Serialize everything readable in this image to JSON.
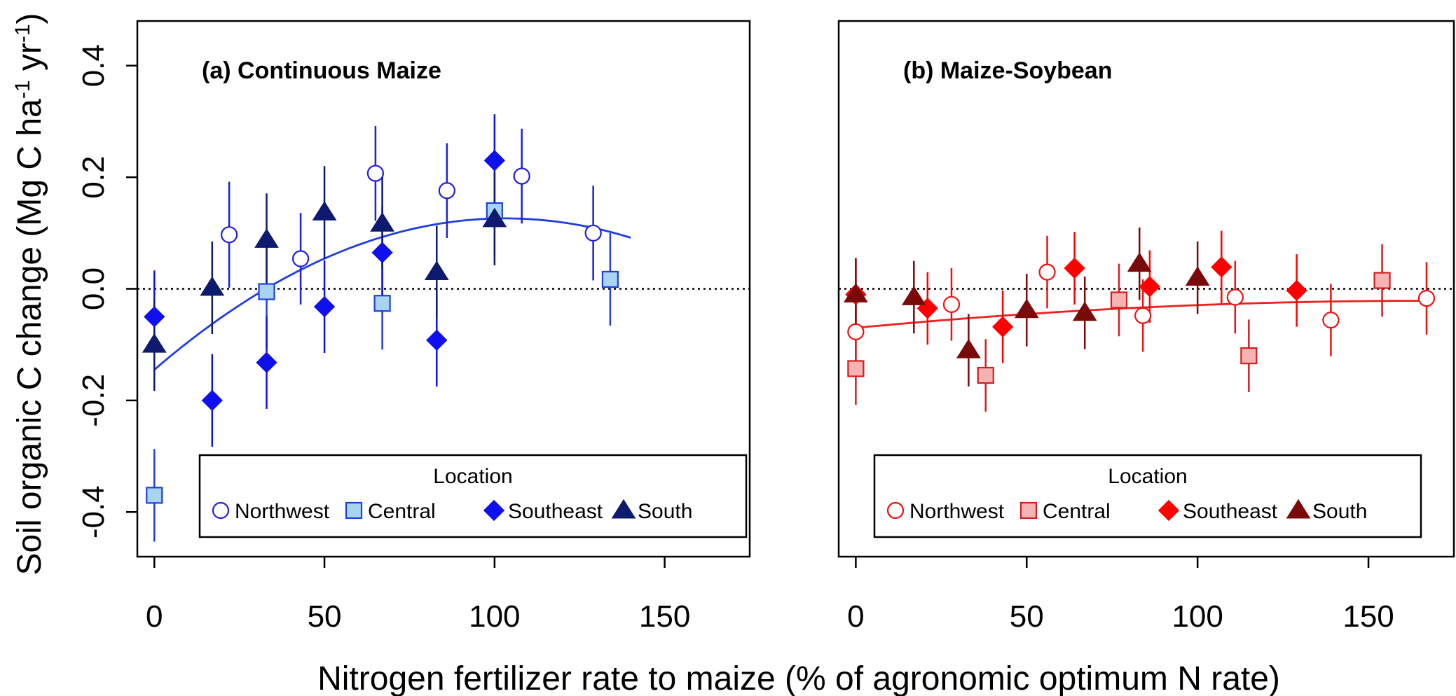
{
  "ylabel": "Soil organic C change (Mg C ha⁻¹ yr⁻¹)",
  "xlabel": "Nitrogen fertilizer rate to maize (% of agronomic optimum N rate)",
  "chart_data": [
    {
      "type": "scatter",
      "title": "(a) Continuous Maize",
      "xlim": [
        -5,
        175
      ],
      "ylim": [
        -0.48,
        0.48
      ],
      "x_ticks": [
        0,
        50,
        100,
        150
      ],
      "y_ticks": [
        -0.4,
        -0.2,
        0.0,
        0.2,
        0.4
      ],
      "y_tick_labels": [
        "-0.4",
        "-0.2",
        "0.0",
        "0.2",
        "0.4"
      ],
      "show_y_ticks": true,
      "reference_line_y": 0.0,
      "legend": {
        "title": "Location",
        "placement": "bottom"
      },
      "fit_curve": {
        "color": "#1f3fe0",
        "x_range": [
          0,
          140
        ],
        "coefficients": [
          -0.145,
          0.00526,
          -2.55e-05
        ]
      },
      "series": [
        {
          "name": "Northwest",
          "marker": "circle-open",
          "color": "#1f1fe0",
          "fill": "#ffffff",
          "points": [
            {
              "x": 22,
              "y": 0.097,
              "err": 0.095
            },
            {
              "x": 43,
              "y": 0.054,
              "err": 0.082
            },
            {
              "x": 65,
              "y": 0.207,
              "err": 0.085
            },
            {
              "x": 86,
              "y": 0.176,
              "err": 0.085
            },
            {
              "x": 108,
              "y": 0.202,
              "err": 0.085
            },
            {
              "x": 129,
              "y": 0.1,
              "err": 0.085
            }
          ]
        },
        {
          "name": "Central",
          "marker": "square",
          "color": "#1f3fe0",
          "fill": "#a8d4f0",
          "points": [
            {
              "x": 0,
              "y": -0.37,
              "err": 0.083
            },
            {
              "x": 33,
              "y": -0.005,
              "err": 0.1
            },
            {
              "x": 67,
              "y": -0.026,
              "err": 0.083
            },
            {
              "x": 100,
              "y": 0.14,
              "err": 0.083
            },
            {
              "x": 134,
              "y": 0.017,
              "err": 0.083
            }
          ]
        },
        {
          "name": "Southeast",
          "marker": "diamond",
          "color": "#1010ee",
          "fill": "#1010ee",
          "points": [
            {
              "x": 0,
              "y": -0.05,
              "err": 0.083
            },
            {
              "x": 17,
              "y": -0.2,
              "err": 0.083
            },
            {
              "x": 33,
              "y": -0.132,
              "err": 0.083
            },
            {
              "x": 50,
              "y": -0.032,
              "err": 0.083
            },
            {
              "x": 67,
              "y": 0.065,
              "err": 0.083
            },
            {
              "x": 83,
              "y": -0.092,
              "err": 0.083
            },
            {
              "x": 100,
              "y": 0.23,
              "err": 0.083
            }
          ]
        },
        {
          "name": "South",
          "marker": "triangle",
          "color": "#0d1a6e",
          "fill": "#0d1a6e",
          "points": [
            {
              "x": 0,
              "y": -0.1,
              "err": 0.083
            },
            {
              "x": 17,
              "y": 0.002,
              "err": 0.083
            },
            {
              "x": 33,
              "y": 0.088,
              "err": 0.083
            },
            {
              "x": 50,
              "y": 0.137,
              "err": 0.083
            },
            {
              "x": 67,
              "y": 0.117,
              "err": 0.083
            },
            {
              "x": 83,
              "y": 0.03,
              "err": 0.083
            },
            {
              "x": 100,
              "y": 0.125,
              "err": 0.083
            }
          ]
        }
      ]
    },
    {
      "type": "scatter",
      "title": "(b) Maize-Soybean",
      "xlim": [
        -5,
        175
      ],
      "ylim": [
        -0.48,
        0.48
      ],
      "x_ticks": [
        0,
        50,
        100,
        150
      ],
      "y_ticks": [],
      "y_tick_labels": [],
      "show_y_ticks": false,
      "reference_line_y": 0.0,
      "legend": {
        "title": "Location",
        "placement": "bottom"
      },
      "fit_curve": {
        "color": "#ee2020",
        "x_range": [
          0,
          167
        ],
        "coefficients": [
          -0.07,
          0.000583,
          -1.75e-06
        ]
      },
      "series": [
        {
          "name": "Northwest",
          "marker": "circle-open",
          "color": "#ee1111",
          "fill": "#ffffff",
          "points": [
            {
              "x": 0,
              "y": -0.077,
              "err": 0.065
            },
            {
              "x": 28,
              "y": -0.028,
              "err": 0.065
            },
            {
              "x": 56,
              "y": 0.03,
              "err": 0.065
            },
            {
              "x": 84,
              "y": -0.048,
              "err": 0.065
            },
            {
              "x": 111,
              "y": -0.015,
              "err": 0.065
            },
            {
              "x": 139,
              "y": -0.056,
              "err": 0.065
            },
            {
              "x": 167,
              "y": -0.017,
              "err": 0.065
            }
          ]
        },
        {
          "name": "Central",
          "marker": "square",
          "color": "#d21f1f",
          "fill": "#f7b3b3",
          "points": [
            {
              "x": 0,
              "y": -0.143,
              "err": 0.065
            },
            {
              "x": 38,
              "y": -0.155,
              "err": 0.065
            },
            {
              "x": 77,
              "y": -0.02,
              "err": 0.065
            },
            {
              "x": 115,
              "y": -0.12,
              "err": 0.065
            },
            {
              "x": 154,
              "y": 0.015,
              "err": 0.065
            }
          ]
        },
        {
          "name": "Southeast",
          "marker": "diamond",
          "color": "#ff0000",
          "fill": "#ff0000",
          "points": [
            {
              "x": 0,
              "y": -0.01,
              "err": 0.065
            },
            {
              "x": 21,
              "y": -0.035,
              "err": 0.065
            },
            {
              "x": 43,
              "y": -0.068,
              "err": 0.065
            },
            {
              "x": 64,
              "y": 0.037,
              "err": 0.065
            },
            {
              "x": 86,
              "y": 0.004,
              "err": 0.065
            },
            {
              "x": 107,
              "y": 0.039,
              "err": 0.065
            },
            {
              "x": 129,
              "y": -0.003,
              "err": 0.065
            }
          ]
        },
        {
          "name": "South",
          "marker": "triangle",
          "color": "#7a0a0a",
          "fill": "#7a0a0a",
          "points": [
            {
              "x": 0,
              "y": -0.01,
              "err": 0.065
            },
            {
              "x": 17,
              "y": -0.015,
              "err": 0.065
            },
            {
              "x": 33,
              "y": -0.11,
              "err": 0.065
            },
            {
              "x": 50,
              "y": -0.038,
              "err": 0.065
            },
            {
              "x": 67,
              "y": -0.043,
              "err": 0.065
            },
            {
              "x": 83,
              "y": 0.045,
              "err": 0.065
            },
            {
              "x": 100,
              "y": 0.02,
              "err": 0.065
            }
          ]
        }
      ]
    }
  ]
}
